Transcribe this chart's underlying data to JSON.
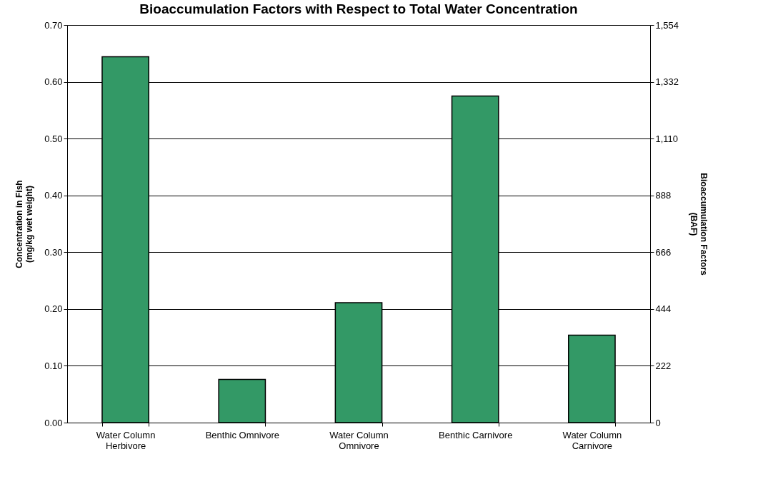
{
  "chart_data": {
    "type": "bar",
    "title": "Bioaccumulation Factors with Respect to Total Water Concentration",
    "categories": [
      "Water Column Herbivore",
      "Benthic Omnivore",
      "Water Column Omnivore",
      "Benthic Carnivore",
      "Water Column Carnivore"
    ],
    "values": [
      0.644,
      0.076,
      0.211,
      0.575,
      0.154
    ],
    "color": "#339966",
    "ylabel": "Concentration in Fish (mg/kg wet weight)",
    "y2label": "Bioaccumulation Factors (BAF)",
    "ylim": [
      0,
      0.7
    ],
    "yticks": [
      {
        "value": 0,
        "label": "0.00"
      },
      {
        "value": 0.1,
        "label": "0.10"
      },
      {
        "value": 0.2,
        "label": "0.20"
      },
      {
        "value": 0.3,
        "label": "0.30"
      },
      {
        "value": 0.4,
        "label": "0.40"
      },
      {
        "value": 0.5,
        "label": "0.50"
      },
      {
        "value": 0.6,
        "label": "0.60"
      },
      {
        "value": 0.7,
        "label": "0.70"
      }
    ],
    "y2lim": [
      0,
      1554
    ],
    "y2ticks": [
      0,
      222,
      444,
      666,
      888,
      {
        "value": 1110,
        "label": "1,110"
      },
      {
        "value": 1332,
        "label": "1,332"
      },
      {
        "value": 1554,
        "label": "1,554"
      }
    ],
    "grid": "y"
  }
}
